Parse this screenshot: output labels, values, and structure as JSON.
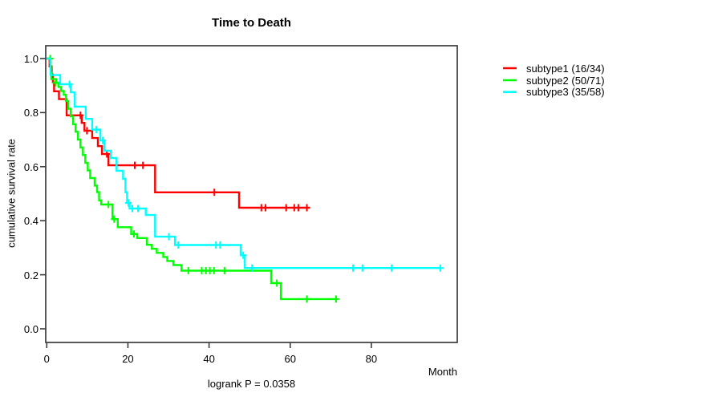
{
  "chart_data": {
    "type": "line",
    "variant": "kaplan-meier-step",
    "title": "Time to Death",
    "xlabel": "Month",
    "ylabel": "cumulative survival rate",
    "annotation": "logrank P = 0.0358",
    "xlim": [
      0,
      101
    ],
    "ylim": [
      0,
      1.0
    ],
    "xticks": [
      0,
      20,
      40,
      60,
      80
    ],
    "yticks": [
      0.0,
      0.2,
      0.4,
      0.6,
      0.8,
      1.0
    ],
    "ytick_labels": [
      "0.0",
      "0.2",
      "0.4",
      "0.6",
      "0.8",
      "1.0"
    ],
    "grid": false,
    "legend_position": "right-outside",
    "frame_color": "#3c3c3c",
    "series": [
      {
        "id": "subtype1",
        "name": "subtype1 (16/34)",
        "color": "#ff0000",
        "start": [
          0,
          1.0
        ],
        "end_month": 64.9,
        "steps": [
          [
            0.7,
            0.971
          ],
          [
            1.2,
            0.941
          ],
          [
            1.5,
            0.912
          ],
          [
            1.8,
            0.879
          ],
          [
            3.0,
            0.85
          ],
          [
            4.9,
            0.79
          ],
          [
            8.6,
            0.762
          ],
          [
            9.3,
            0.733
          ],
          [
            11.2,
            0.706
          ],
          [
            12.6,
            0.676
          ],
          [
            13.6,
            0.647
          ],
          [
            15.2,
            0.605
          ],
          [
            26.7,
            0.505
          ],
          [
            47.4,
            0.448
          ]
        ],
        "censors": [
          [
            8.3,
            0.79
          ],
          [
            9.9,
            0.733
          ],
          [
            14.8,
            0.647
          ],
          [
            21.7,
            0.605
          ],
          [
            23.7,
            0.605
          ],
          [
            41.3,
            0.505
          ],
          [
            52.9,
            0.448
          ],
          [
            53.9,
            0.448
          ],
          [
            59.0,
            0.448
          ],
          [
            61.0,
            0.448
          ],
          [
            62.0,
            0.448
          ],
          [
            64.1,
            0.448
          ]
        ]
      },
      {
        "id": "subtype2",
        "name": "subtype2 (50/71)",
        "color": "#00ff00",
        "start": [
          0,
          1.0
        ],
        "end_month": 71.5,
        "steps": [
          [
            0.95,
            0.971
          ],
          [
            1.0,
            0.947
          ],
          [
            1.1,
            0.924
          ],
          [
            2.3,
            0.91
          ],
          [
            2.9,
            0.895
          ],
          [
            3.5,
            0.88
          ],
          [
            4.2,
            0.866
          ],
          [
            4.7,
            0.843
          ],
          [
            5.3,
            0.814
          ],
          [
            5.9,
            0.786
          ],
          [
            6.5,
            0.757
          ],
          [
            7.1,
            0.729
          ],
          [
            7.7,
            0.7
          ],
          [
            8.3,
            0.671
          ],
          [
            8.9,
            0.643
          ],
          [
            9.5,
            0.614
          ],
          [
            10.1,
            0.586
          ],
          [
            10.7,
            0.558
          ],
          [
            11.8,
            0.53
          ],
          [
            12.4,
            0.506
          ],
          [
            12.9,
            0.475
          ],
          [
            13.4,
            0.46
          ],
          [
            16.2,
            0.406
          ],
          [
            17.5,
            0.376
          ],
          [
            20.8,
            0.351
          ],
          [
            22.3,
            0.336
          ],
          [
            24.7,
            0.311
          ],
          [
            25.9,
            0.296
          ],
          [
            27.1,
            0.281
          ],
          [
            28.7,
            0.266
          ],
          [
            29.7,
            0.251
          ],
          [
            31.2,
            0.236
          ],
          [
            33.2,
            0.215
          ],
          [
            55.3,
            0.169
          ],
          [
            57.7,
            0.11
          ]
        ],
        "censors": [
          [
            0.85,
            1.0
          ],
          [
            2.2,
            0.91
          ],
          [
            15.2,
            0.46
          ],
          [
            16.6,
            0.406
          ],
          [
            21.5,
            0.351
          ],
          [
            34.9,
            0.215
          ],
          [
            38.2,
            0.215
          ],
          [
            39.2,
            0.215
          ],
          [
            40.2,
            0.215
          ],
          [
            41.2,
            0.215
          ],
          [
            43.8,
            0.215
          ],
          [
            56.7,
            0.169
          ],
          [
            64.1,
            0.11
          ],
          [
            71.3,
            0.11
          ]
        ]
      },
      {
        "id": "subtype3",
        "name": "subtype3 (35/58)",
        "color": "#00ffff",
        "start": [
          0,
          1.0
        ],
        "end_month": 97.2,
        "steps": [
          [
            0.85,
            0.983
          ],
          [
            0.9,
            0.962
          ],
          [
            0.95,
            0.939
          ],
          [
            3.3,
            0.905
          ],
          [
            5.9,
            0.875
          ],
          [
            6.9,
            0.822
          ],
          [
            9.6,
            0.777
          ],
          [
            11.2,
            0.737
          ],
          [
            13.2,
            0.697
          ],
          [
            14.2,
            0.659
          ],
          [
            15.8,
            0.632
          ],
          [
            17.2,
            0.585
          ],
          [
            18.8,
            0.555
          ],
          [
            19.4,
            0.505
          ],
          [
            19.8,
            0.466
          ],
          [
            20.4,
            0.445
          ],
          [
            24.4,
            0.421
          ],
          [
            26.7,
            0.341
          ],
          [
            31.6,
            0.31
          ],
          [
            47.8,
            0.272
          ],
          [
            48.8,
            0.225
          ]
        ],
        "censors": [
          [
            5.6,
            0.905
          ],
          [
            12.2,
            0.737
          ],
          [
            13.8,
            0.697
          ],
          [
            20.1,
            0.466
          ],
          [
            21.1,
            0.445
          ],
          [
            22.5,
            0.445
          ],
          [
            30.1,
            0.341
          ],
          [
            32.4,
            0.31
          ],
          [
            41.7,
            0.31
          ],
          [
            42.7,
            0.31
          ],
          [
            48.4,
            0.272
          ],
          [
            50.6,
            0.225
          ],
          [
            75.5,
            0.225
          ],
          [
            77.8,
            0.225
          ],
          [
            85.0,
            0.225
          ],
          [
            97.0,
            0.225
          ]
        ]
      }
    ]
  }
}
